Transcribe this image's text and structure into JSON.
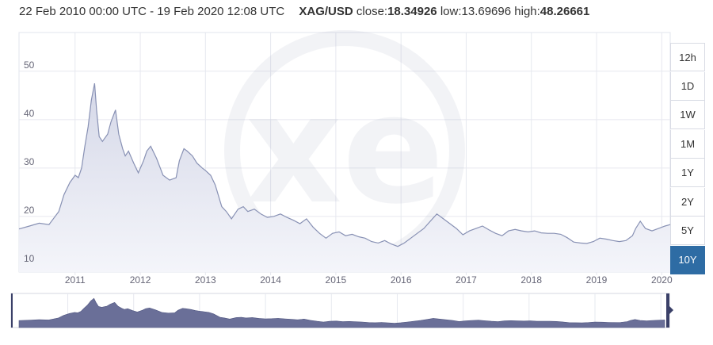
{
  "header": {
    "range_text": "22 Feb 2010 00:00 UTC - 19 Feb 2020 12:08 UTC",
    "symbol": "XAG/USD",
    "close_label": "close:",
    "close_value": "18.34926",
    "low_label": "low:",
    "low_value": "13.69696",
    "high_label": "high:",
    "high_value": "48.26661"
  },
  "range_buttons": [
    "12h",
    "1D",
    "1W",
    "1M",
    "1Y",
    "2Y",
    "5Y",
    "10Y"
  ],
  "active_range": "10Y",
  "watermark": "xe",
  "colors": {
    "line": "#8891b4",
    "area_top": "#d5d8e8",
    "area_bottom": "#f4f5fa",
    "navigator_fill": "#6a6f98",
    "active_button": "#2e6ca4"
  },
  "chart_data": {
    "type": "area",
    "title": "",
    "xlabel": "",
    "ylabel": "",
    "ylim": [
      8.5,
      58
    ],
    "xlim": [
      2010.14,
      2020.13
    ],
    "x_ticks": [
      "2011",
      "2012",
      "2013",
      "2014",
      "2015",
      "2016",
      "2017",
      "2018",
      "2019",
      "2020"
    ],
    "y_ticks": [
      10,
      20,
      30,
      40,
      50
    ],
    "grid": true,
    "series": [
      {
        "x": [
          2010.14,
          2010.3,
          2010.45,
          2010.6,
          2010.75,
          2010.83,
          2010.92,
          2011.0,
          2011.05,
          2011.1,
          2011.15,
          2011.2,
          2011.25,
          2011.3,
          2011.33,
          2011.37,
          2011.42,
          2011.5,
          2011.55,
          2011.62,
          2011.67,
          2011.73,
          2011.77,
          2011.82,
          2011.9,
          2011.97,
          2012.05,
          2012.1,
          2012.16,
          2012.25,
          2012.35,
          2012.45,
          2012.55,
          2012.6,
          2012.67,
          2012.72,
          2012.8,
          2012.87,
          2012.95,
          2013.0,
          2013.08,
          2013.15,
          2013.25,
          2013.32,
          2013.4,
          2013.5,
          2013.58,
          2013.65,
          2013.75,
          2013.85,
          2013.95,
          2014.05,
          2014.15,
          2014.25,
          2014.35,
          2014.45,
          2014.55,
          2014.65,
          2014.75,
          2014.85,
          2014.95,
          2015.05,
          2015.15,
          2015.25,
          2015.35,
          2015.45,
          2015.55,
          2015.65,
          2015.75,
          2015.85,
          2015.95,
          2016.05,
          2016.15,
          2016.25,
          2016.35,
          2016.45,
          2016.55,
          2016.65,
          2016.75,
          2016.85,
          2016.95,
          2017.05,
          2017.15,
          2017.25,
          2017.35,
          2017.45,
          2017.55,
          2017.65,
          2017.75,
          2017.85,
          2017.95,
          2018.05,
          2018.15,
          2018.25,
          2018.35,
          2018.45,
          2018.55,
          2018.65,
          2018.75,
          2018.85,
          2018.95,
          2019.05,
          2019.15,
          2019.25,
          2019.35,
          2019.45,
          2019.55,
          2019.6,
          2019.67,
          2019.75,
          2019.85,
          2019.95,
          2020.05,
          2020.13
        ],
        "y": [
          17.4,
          18.0,
          18.6,
          18.3,
          21.0,
          24.5,
          27.0,
          28.5,
          28.0,
          30.0,
          34.5,
          38.5,
          44.0,
          47.5,
          42.0,
          36.5,
          35.5,
          37.0,
          39.5,
          42.0,
          37.0,
          34.0,
          32.5,
          33.5,
          31.0,
          29.0,
          31.5,
          33.5,
          34.5,
          32.0,
          28.5,
          27.5,
          28.0,
          31.5,
          34.0,
          33.5,
          32.5,
          31.0,
          30.0,
          29.5,
          28.5,
          26.5,
          22.0,
          21.0,
          19.5,
          21.5,
          22.0,
          21.0,
          21.5,
          20.5,
          19.8,
          20.0,
          20.5,
          19.8,
          19.2,
          18.5,
          19.5,
          17.8,
          16.5,
          15.5,
          16.5,
          16.8,
          16.0,
          16.3,
          15.8,
          15.5,
          14.8,
          14.5,
          15.0,
          14.3,
          13.8,
          14.5,
          15.5,
          16.5,
          17.5,
          19.0,
          20.5,
          19.5,
          18.5,
          17.5,
          16.2,
          17.0,
          17.5,
          18.0,
          17.2,
          16.5,
          16.0,
          17.0,
          17.3,
          17.0,
          16.8,
          17.0,
          16.6,
          16.5,
          16.5,
          16.3,
          15.6,
          14.7,
          14.5,
          14.4,
          14.8,
          15.5,
          15.3,
          15.0,
          14.8,
          15.0,
          16.0,
          17.5,
          19.0,
          17.5,
          17.0,
          17.5,
          18.0,
          18.3
        ]
      }
    ]
  }
}
